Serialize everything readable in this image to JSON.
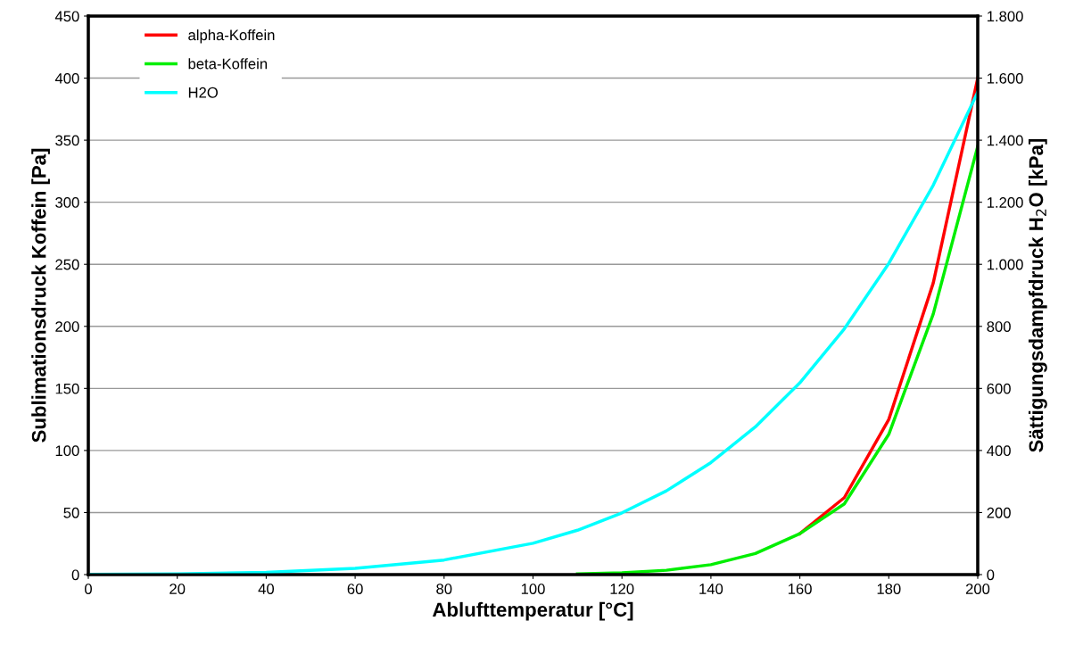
{
  "chart_data": {
    "type": "line",
    "xlabel": "Ablufttemperatur [°C]",
    "ylabel": "Sublimationsdruck Koffein [Pa]",
    "y2label": "Sättigungsdampfdruck H$_{2}$O [kPa]",
    "x": [
      0,
      20,
      40,
      60,
      80,
      100,
      110,
      120,
      130,
      140,
      150,
      160,
      170,
      180,
      190,
      200
    ],
    "series": [
      {
        "name": "alpha-Koffein",
        "color": "#ff0000",
        "values": [
          null,
          null,
          null,
          null,
          null,
          null,
          null,
          null,
          null,
          null,
          null,
          33,
          62,
          125,
          235,
          400
        ]
      },
      {
        "name": "beta-Koffein",
        "color": "#00ee00",
        "values": [
          null,
          null,
          null,
          null,
          null,
          null,
          0.6,
          1.5,
          3.5,
          8,
          17,
          33,
          57,
          113,
          210,
          345
        ]
      },
      {
        "name": "H2O",
        "color": "#00ffff",
        "axis": "y2",
        "values": [
          1,
          2,
          7,
          20,
          47,
          101,
          143,
          199,
          270,
          361,
          476,
          618,
          792,
          1003,
          1255,
          1555
        ]
      }
    ],
    "xlim": [
      0,
      200
    ],
    "xticks": [
      0,
      20,
      40,
      60,
      80,
      100,
      120,
      140,
      160,
      180,
      200
    ],
    "ylim": [
      0,
      450
    ],
    "yticks": [
      0,
      50,
      100,
      150,
      200,
      250,
      300,
      350,
      400,
      450
    ],
    "y2lim": [
      0,
      1800
    ],
    "y2ticks": [
      0,
      {
        "value": 200,
        "label": "200"
      },
      {
        "value": 400,
        "label": "400"
      },
      {
        "value": 600,
        "label": "600"
      },
      {
        "value": 800,
        "label": "800"
      },
      {
        "value": 1000,
        "label": "1.000"
      },
      {
        "value": 1200,
        "label": "1.200"
      },
      {
        "value": 1400,
        "label": "1.400"
      },
      {
        "value": 1600,
        "label": "1.600"
      },
      {
        "value": 1800,
        "label": "1.800"
      }
    ],
    "grid": "y",
    "legend": "top left",
    "marker": "none",
    "line_style": "solid"
  }
}
